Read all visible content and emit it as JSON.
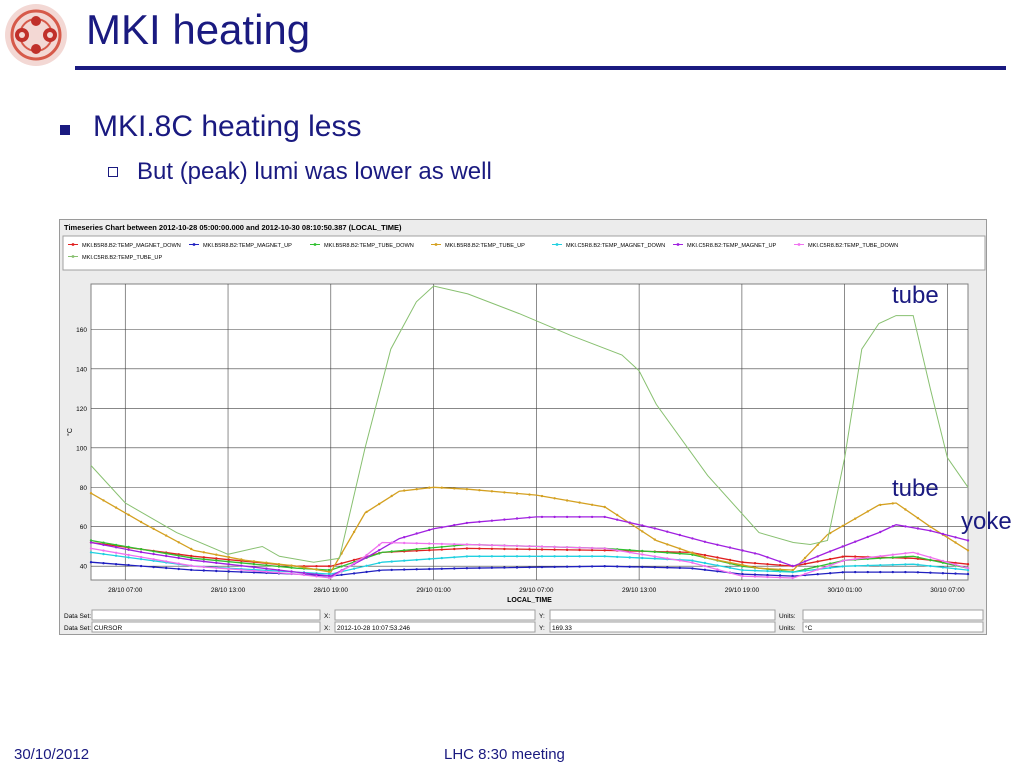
{
  "slide": {
    "title": "MKI heating",
    "bullet1": "MKI.8C heating less",
    "bullet2": "But (peak) lumi was lower as well",
    "annotations": [
      "tube",
      "tube",
      "yoke"
    ],
    "footer_date": "30/10/2012",
    "footer_center": "LHC 8:30 meeting"
  },
  "panel": {
    "header": "Timeseries Chart between 2012-10-28 05:00:00.000 and 2012-10-30 08:10:50.387 (LOCAL_TIME)",
    "row1": {
      "dataset_label": "Data Set:",
      "dataset_value": "",
      "x_label": "X:",
      "x_value": "",
      "y_label": "Y:",
      "y_value": "",
      "units_label": "Units:",
      "units_value": ""
    },
    "row2": {
      "dataset_label": "Data Set:",
      "dataset_value": "CURSOR",
      "x_label": "X:",
      "x_value": "2012-10-28 10:07:53.246",
      "y_label": "Y:",
      "y_value": "169.33",
      "units_label": "Units:",
      "units_value": "°C"
    }
  },
  "chart_data": {
    "type": "line",
    "title": "Timeseries Chart between 2012-10-28 05:00:00.000 and 2012-10-30 08:10:50.387 (LOCAL_TIME)",
    "xlabel": "LOCAL_TIME",
    "ylabel": "°C",
    "x_unit": "hours after 2012-10-28 05:00",
    "xlim": [
      0,
      51.2
    ],
    "ylim": [
      33,
      183
    ],
    "xticks": [
      2,
      8,
      14,
      20,
      26,
      32,
      38,
      44,
      50
    ],
    "xtick_labels": [
      "28/10 07:00",
      "28/10 13:00",
      "28/10 19:00",
      "29/10 01:00",
      "29/10 07:00",
      "29/10 13:00",
      "29/10 19:00",
      "30/10 01:00",
      "30/10 07:00"
    ],
    "yticks": [
      40,
      60,
      80,
      100,
      120,
      140,
      160
    ],
    "ytick_labels": [
      "40",
      "60",
      "80",
      "100",
      "120",
      "140",
      "160"
    ],
    "grid": true,
    "legend_position": "top",
    "series": [
      {
        "name": "MKI.B5R8.B2:TEMP_MAGNET_DOWN",
        "color": "#e02020",
        "style": "dots",
        "x": [
          0,
          6,
          12,
          14,
          17,
          22,
          30,
          35,
          38,
          41,
          44,
          48,
          51.2
        ],
        "y": [
          52,
          45,
          40,
          40,
          47,
          49,
          48,
          47,
          42,
          40,
          45,
          44,
          41
        ]
      },
      {
        "name": "MKI.B5R8.B2:TEMP_MAGNET_UP",
        "color": "#2020c0",
        "style": "dots",
        "x": [
          0,
          6,
          12,
          14,
          17,
          22,
          30,
          35,
          38,
          41,
          44,
          48,
          51.2
        ],
        "y": [
          42,
          38,
          36,
          35,
          38,
          39,
          40,
          39,
          36,
          35,
          37,
          37,
          36
        ]
      },
      {
        "name": "MKI.B5R8.B2:TEMP_TUBE_DOWN",
        "color": "#30c030",
        "style": "dots",
        "x": [
          0,
          6,
          12,
          14,
          17,
          22,
          30,
          35,
          38,
          41,
          44,
          48,
          51.2
        ],
        "y": [
          53,
          44,
          39,
          38,
          47,
          51,
          49,
          46,
          40,
          37,
          43,
          45,
          39
        ]
      },
      {
        "name": "MKI.B5R8.B2:TEMP_TUBE_UP",
        "color": "#d4a020",
        "style": "dots",
        "x": [
          0,
          3,
          6,
          9,
          12,
          14,
          16,
          18,
          20,
          22,
          26,
          30,
          33,
          36,
          39,
          41,
          43,
          46,
          47,
          49,
          51.2
        ],
        "y": [
          77,
          62,
          48,
          43,
          40,
          37,
          67,
          78,
          80,
          79,
          76,
          70,
          53,
          44,
          39,
          38,
          56,
          71,
          72,
          60,
          48
        ]
      },
      {
        "name": "MKI.C5R8.B2:TEMP_MAGNET_DOWN",
        "color": "#20d0e0",
        "style": "dots",
        "x": [
          0,
          6,
          12,
          14,
          17,
          22,
          30,
          35,
          38,
          41,
          44,
          48,
          51.2
        ],
        "y": [
          47,
          40,
          37,
          36,
          42,
          45,
          45,
          43,
          38,
          37,
          40,
          41,
          38
        ]
      },
      {
        "name": "MKI.C5R8.B2:TEMP_MAGNET_UP",
        "color": "#a020e0",
        "style": "dots",
        "x": [
          0,
          3,
          6,
          9,
          12,
          14,
          16,
          18,
          20,
          22,
          26,
          30,
          33,
          36,
          39,
          41,
          43,
          46,
          47,
          49,
          51.2
        ],
        "y": [
          52,
          47,
          43,
          40,
          37,
          35,
          44,
          54,
          59,
          62,
          65,
          65,
          59,
          52,
          46,
          40,
          47,
          57,
          61,
          58,
          53
        ]
      },
      {
        "name": "MKI.C5R8.B2:TEMP_TUBE_DOWN",
        "color": "#f070f0",
        "style": "dots",
        "x": [
          0,
          6,
          12,
          14,
          16,
          17,
          22,
          30,
          35,
          38,
          41,
          44,
          48,
          51.2
        ],
        "y": [
          49,
          40,
          36,
          34,
          45,
          52,
          51,
          49,
          42,
          35,
          34,
          43,
          47,
          39
        ]
      },
      {
        "name": "MKI.C5R8.B2:TEMP_TUBE_UP",
        "color": "#88c070",
        "style": "line",
        "x": [
          0,
          2,
          5,
          8,
          10,
          11,
          13,
          14.5,
          16,
          17.5,
          19,
          20,
          22,
          25,
          28,
          31,
          32,
          33,
          36,
          39,
          41,
          42,
          43,
          44,
          45,
          46,
          47,
          48,
          49,
          50,
          51.2
        ],
        "y": [
          91,
          72,
          57,
          46,
          50,
          45,
          42,
          44,
          100,
          150,
          174,
          182,
          178,
          168,
          157,
          147,
          139,
          122,
          86,
          57,
          52,
          51,
          53,
          95,
          150,
          163,
          167,
          167,
          130,
          95,
          80
        ]
      }
    ]
  }
}
